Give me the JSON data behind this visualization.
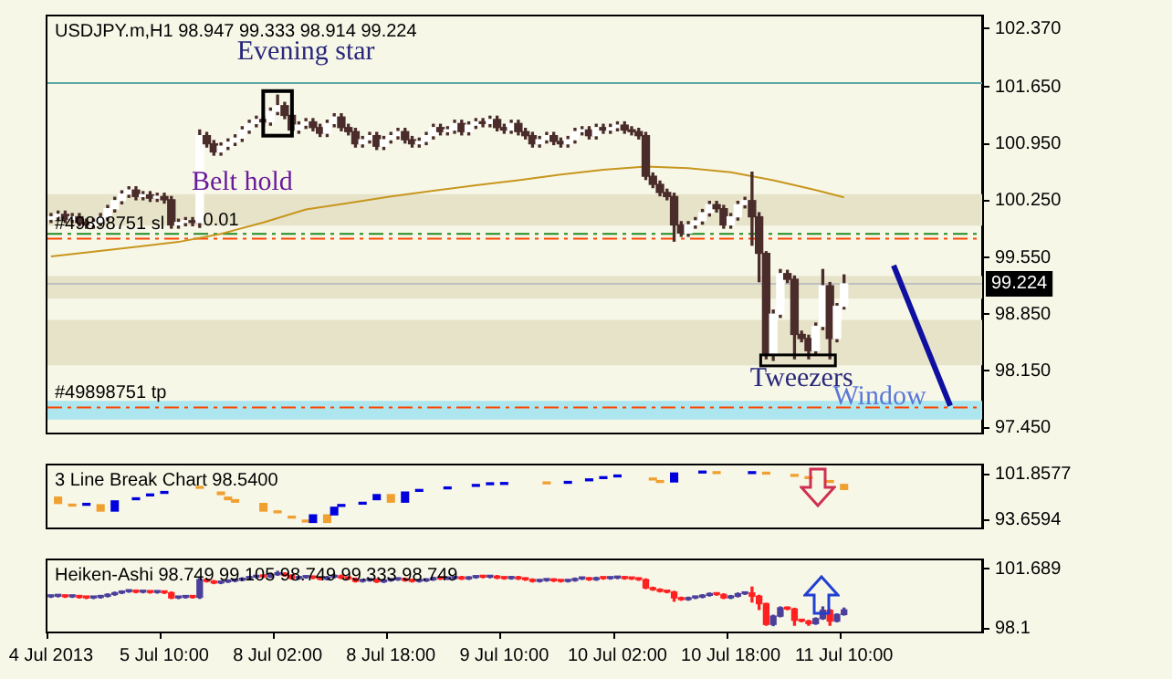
{
  "chart_data": [
    {
      "type": "candlestick",
      "title": "USDJPY.m,H1 98.947 99.333 98.914 99.224",
      "tick_labels": "y",
      "categories": [
        null,
        null,
        null,
        null,
        null,
        null,
        null,
        null,
        null,
        null,
        null,
        null,
        null,
        null,
        null,
        null,
        null,
        null,
        null,
        null,
        null,
        null,
        null,
        null,
        null,
        null,
        null,
        null,
        null,
        null,
        null,
        null,
        null,
        null,
        null,
        null,
        null,
        null,
        null,
        null,
        null,
        null,
        null,
        null,
        null,
        null,
        null,
        null,
        null,
        null,
        null,
        null,
        null,
        null,
        null,
        null,
        null,
        null,
        null,
        null,
        null,
        null,
        null,
        null,
        null,
        null,
        null,
        null,
        null,
        null,
        null,
        null,
        null,
        null,
        null,
        null,
        null,
        null,
        null,
        null,
        null,
        null,
        null,
        null,
        null,
        null,
        null,
        null,
        null,
        null,
        null,
        null,
        null,
        null,
        null,
        null,
        null,
        null,
        null,
        null,
        null,
        null,
        null,
        null,
        null,
        null,
        null,
        null,
        null,
        null,
        null,
        null,
        null,
        null,
        null,
        null,
        null,
        null,
        null,
        null,
        null,
        null,
        null,
        null,
        null,
        null,
        null,
        null,
        null,
        null,
        null,
        null
      ],
      "ohlc": [
        [
          100.02,
          100.09,
          99.98,
          100.05
        ],
        [
          100.05,
          100.12,
          100.01,
          100.08
        ],
        [
          100.08,
          100.12,
          99.98,
          100.02
        ],
        [
          100.02,
          100.09,
          99.98,
          100.05
        ],
        [
          100.05,
          100.09,
          99.94,
          99.98
        ],
        [
          99.98,
          100.02,
          99.91,
          99.95
        ],
        [
          99.95,
          100.02,
          99.91,
          99.98
        ],
        [
          99.98,
          100.09,
          99.94,
          100.05
        ],
        [
          100.05,
          100.19,
          100.01,
          100.15
        ],
        [
          100.15,
          100.29,
          100.11,
          100.25
        ],
        [
          100.25,
          100.37,
          100.21,
          100.33
        ],
        [
          100.33,
          100.42,
          100.29,
          100.38
        ],
        [
          100.38,
          100.42,
          100.26,
          100.3
        ],
        [
          100.3,
          100.36,
          100.26,
          100.32
        ],
        [
          100.32,
          100.36,
          100.24,
          100.28
        ],
        [
          100.28,
          100.34,
          100.24,
          100.3
        ],
        [
          100.3,
          100.34,
          100.22,
          100.26
        ],
        [
          100.26,
          100.3,
          99.91,
          99.95
        ],
        [
          99.95,
          100.02,
          99.91,
          99.98
        ],
        [
          99.98,
          100.04,
          99.94,
          100.0
        ],
        [
          100.0,
          100.04,
          99.94,
          99.98
        ],
        [
          99.98,
          101.12,
          99.92,
          101.05
        ],
        [
          101.05,
          101.09,
          100.91,
          100.95
        ],
        [
          100.95,
          100.99,
          100.81,
          100.85
        ],
        [
          100.85,
          100.96,
          100.81,
          100.92
        ],
        [
          100.92,
          101.01,
          100.88,
          100.97
        ],
        [
          100.97,
          101.06,
          100.93,
          101.02
        ],
        [
          101.02,
          101.16,
          100.98,
          101.12
        ],
        [
          101.12,
          101.24,
          101.08,
          101.2
        ],
        [
          101.2,
          101.29,
          101.16,
          101.25
        ],
        [
          101.25,
          101.29,
          101.18,
          101.22
        ],
        [
          101.22,
          101.39,
          101.18,
          101.35
        ],
        [
          101.35,
          101.55,
          101.31,
          101.42
        ],
        [
          101.42,
          101.46,
          101.26,
          101.3
        ],
        [
          101.3,
          101.34,
          101.08,
          101.12
        ],
        [
          101.12,
          101.22,
          101.08,
          101.18
        ],
        [
          101.18,
          101.26,
          101.14,
          101.22
        ],
        [
          101.22,
          101.26,
          101.11,
          101.15
        ],
        [
          101.15,
          101.19,
          101.04,
          101.08
        ],
        [
          101.08,
          101.24,
          101.04,
          101.2
        ],
        [
          101.2,
          101.32,
          101.16,
          101.28
        ],
        [
          101.28,
          101.32,
          101.11,
          101.15
        ],
        [
          101.15,
          101.19,
          101.06,
          101.1
        ],
        [
          101.1,
          101.14,
          100.91,
          100.95
        ],
        [
          100.95,
          101.04,
          100.91,
          101.0
        ],
        [
          101.0,
          101.09,
          100.96,
          101.05
        ],
        [
          101.05,
          101.09,
          100.88,
          100.92
        ],
        [
          100.92,
          101.04,
          100.88,
          101.0
        ],
        [
          101.0,
          101.09,
          100.96,
          101.05
        ],
        [
          101.05,
          101.14,
          101.01,
          101.1
        ],
        [
          101.1,
          101.14,
          100.96,
          101.0
        ],
        [
          101.0,
          101.04,
          100.91,
          100.95
        ],
        [
          100.95,
          101.02,
          100.91,
          100.98
        ],
        [
          100.98,
          101.09,
          100.94,
          101.05
        ],
        [
          101.05,
          101.19,
          101.01,
          101.15
        ],
        [
          101.15,
          101.19,
          101.06,
          101.1
        ],
        [
          101.1,
          101.16,
          101.06,
          101.12
        ],
        [
          101.12,
          101.24,
          101.08,
          101.2
        ],
        [
          101.2,
          101.24,
          101.06,
          101.1
        ],
        [
          101.1,
          101.22,
          101.06,
          101.18
        ],
        [
          101.18,
          101.26,
          101.14,
          101.22
        ],
        [
          101.22,
          101.26,
          101.16,
          101.2
        ],
        [
          101.2,
          101.29,
          101.16,
          101.25
        ],
        [
          101.25,
          101.29,
          101.11,
          101.15
        ],
        [
          101.15,
          101.19,
          101.08,
          101.12
        ],
        [
          101.12,
          101.24,
          101.08,
          101.2
        ],
        [
          101.2,
          101.24,
          101.06,
          101.1
        ],
        [
          101.1,
          101.14,
          101.01,
          101.05
        ],
        [
          101.05,
          101.09,
          100.91,
          100.95
        ],
        [
          100.95,
          101.04,
          100.91,
          101.0
        ],
        [
          101.0,
          101.09,
          100.96,
          101.05
        ],
        [
          101.05,
          101.09,
          100.94,
          100.98
        ],
        [
          100.98,
          101.02,
          100.91,
          100.95
        ],
        [
          100.95,
          101.04,
          100.91,
          101.0
        ],
        [
          101.0,
          101.14,
          100.96,
          101.1
        ],
        [
          101.1,
          101.16,
          101.06,
          101.12
        ],
        [
          101.12,
          101.16,
          101.01,
          101.05
        ],
        [
          101.05,
          101.19,
          101.01,
          101.15
        ],
        [
          101.15,
          101.19,
          101.08,
          101.12
        ],
        [
          101.12,
          101.19,
          101.08,
          101.15
        ],
        [
          101.15,
          101.22,
          101.11,
          101.18
        ],
        [
          101.18,
          101.22,
          101.08,
          101.12
        ],
        [
          101.12,
          101.16,
          101.06,
          101.1
        ],
        [
          101.1,
          101.14,
          101.01,
          101.05
        ],
        [
          101.05,
          101.09,
          100.51,
          100.55
        ],
        [
          100.55,
          100.59,
          100.41,
          100.45
        ],
        [
          100.45,
          100.49,
          100.31,
          100.35
        ],
        [
          100.35,
          100.39,
          100.26,
          100.3
        ],
        [
          100.3,
          100.34,
          99.75,
          99.95
        ],
        [
          99.95,
          99.99,
          99.81,
          99.85
        ],
        [
          99.85,
          99.99,
          99.81,
          99.95
        ],
        [
          99.95,
          100.04,
          99.91,
          100.0
        ],
        [
          100.0,
          100.14,
          99.96,
          100.1
        ],
        [
          100.1,
          100.24,
          100.06,
          100.2
        ],
        [
          100.2,
          100.24,
          100.11,
          100.15
        ],
        [
          100.15,
          100.19,
          99.91,
          99.95
        ],
        [
          99.95,
          100.09,
          99.91,
          100.05
        ],
        [
          100.05,
          100.24,
          100.01,
          100.2
        ],
        [
          100.2,
          100.29,
          100.16,
          100.25
        ],
        [
          100.25,
          100.6,
          99.7,
          100.05
        ],
        [
          100.05,
          100.1,
          99.25,
          99.6
        ],
        [
          99.6,
          99.62,
          98.3,
          98.35
        ],
        [
          98.35,
          98.9,
          98.28,
          98.85
        ],
        [
          98.85,
          99.4,
          98.81,
          99.35
        ],
        [
          99.35,
          99.39,
          99.24,
          99.28
        ],
        [
          99.28,
          99.32,
          98.3,
          98.6
        ],
        [
          98.6,
          98.64,
          98.51,
          98.55
        ],
        [
          98.55,
          98.59,
          98.3,
          98.4
        ],
        [
          98.4,
          98.74,
          98.36,
          98.7
        ],
        [
          98.7,
          99.4,
          98.66,
          99.2
        ],
        [
          99.2,
          99.24,
          98.3,
          98.55
        ],
        [
          98.55,
          98.98,
          98.51,
          98.947
        ],
        [
          98.947,
          99.333,
          98.914,
          99.224
        ],
        null,
        null,
        null,
        null,
        null,
        null,
        null,
        null,
        null,
        null,
        null,
        null,
        null,
        null,
        null,
        null,
        null,
        null,
        null
      ],
      "series": [
        {
          "type": "line",
          "color": "#c8961e",
          "values": [
            99.56,
            null,
            null,
            null,
            null,
            null,
            99.62,
            null,
            null,
            null,
            null,
            null,
            99.68,
            null,
            null,
            null,
            null,
            null,
            99.74,
            null,
            null,
            null,
            null,
            null,
            99.84,
            null,
            null,
            null,
            null,
            null,
            99.98,
            null,
            null,
            null,
            null,
            null,
            100.14,
            null,
            null,
            null,
            null,
            null,
            100.22,
            null,
            null,
            null,
            null,
            null,
            100.3,
            null,
            null,
            null,
            null,
            null,
            100.37,
            null,
            null,
            null,
            null,
            null,
            100.44,
            null,
            null,
            null,
            null,
            null,
            100.5,
            null,
            null,
            null,
            null,
            null,
            100.57,
            null,
            null,
            null,
            null,
            null,
            100.63,
            null,
            null,
            null,
            null,
            null,
            100.67,
            null,
            null,
            null,
            null,
            null,
            100.65,
            null,
            null,
            null,
            null,
            null,
            100.6,
            null,
            null,
            null,
            null,
            null,
            100.5,
            null,
            null,
            null,
            null,
            null,
            100.38,
            null,
            null,
            null,
            100.29,
            null,
            null,
            null,
            null,
            null,
            null,
            null,
            null,
            null,
            null,
            null,
            null,
            null,
            null,
            null,
            null,
            null,
            null,
            null
          ]
        }
      ],
      "ylim": [
        97.39,
        102.52
      ],
      "yticks": [
        {
          "value": 102.37,
          "label": "102.370"
        },
        {
          "value": 101.65,
          "label": "101.650"
        },
        {
          "value": 100.95,
          "label": "100.950"
        },
        {
          "value": 100.25,
          "label": "100.250"
        },
        {
          "value": 99.55,
          "label": "99.550"
        },
        {
          "value": 98.85,
          "label": "98.850"
        },
        {
          "value": 98.15,
          "label": "98.150"
        },
        {
          "value": 97.45,
          "label": "97.450"
        }
      ],
      "bands": [
        {
          "axis": "y",
          "from": 99.94,
          "to": 100.33,
          "color": "#e6e3c9"
        },
        {
          "axis": "y",
          "from": 99.04,
          "to": 99.32,
          "color": "#e6e3c9"
        },
        {
          "axis": "y",
          "from": 98.22,
          "to": 98.78,
          "color": "#e6e3c9"
        },
        {
          "axis": "y",
          "from": 97.55,
          "to": 97.78,
          "color": "#ade6ee"
        }
      ],
      "ref_lines": [
        {
          "axis": "y",
          "value": 101.7,
          "color": "#5fa8a8"
        },
        {
          "axis": "y",
          "value": 99.84,
          "color": "#228b22",
          "line_style": "dashed"
        },
        {
          "axis": "y",
          "value": 99.78,
          "label": "#49898751 sl",
          "color": "#ff4500",
          "line_style": "dashed"
        },
        {
          "axis": "y",
          "value": 99.224,
          "label": "99.224",
          "color": "#c0c0c0"
        },
        {
          "axis": "y",
          "value": 97.7,
          "label": "#49898751 tp",
          "color": "#ff4500",
          "line_style": "dashed"
        }
      ],
      "annotations": [
        "Evening star",
        "Belt hold",
        "Tweezers",
        "Window",
        "0.01"
      ]
    },
    {
      "type": "bar",
      "title": "3 Line Break Chart 98.5400",
      "tick_labels": "y",
      "categories": [
        null,
        null,
        null,
        null,
        null,
        null,
        null,
        null,
        null,
        null,
        null,
        null,
        null,
        null,
        null,
        null,
        null,
        null,
        null,
        null,
        null,
        null,
        null,
        null,
        null,
        null,
        null,
        null,
        null,
        null,
        null,
        null,
        null,
        null,
        null,
        null,
        null,
        null,
        null,
        null,
        null,
        null,
        null,
        null,
        null,
        null,
        null,
        null,
        null,
        null,
        null,
        null,
        null,
        null,
        null,
        null,
        null,
        null,
        null,
        null,
        null,
        null,
        null,
        null,
        null,
        null,
        null,
        null,
        null,
        null,
        null,
        null,
        null,
        null,
        null,
        null,
        null,
        null,
        null,
        null,
        null,
        null,
        null,
        null,
        null,
        null,
        null,
        null,
        null,
        null,
        null,
        null,
        null,
        null,
        null,
        null,
        null,
        null,
        null,
        null,
        null,
        null,
        null,
        null,
        null,
        null,
        null,
        null,
        null,
        null,
        null,
        null,
        null,
        null,
        null,
        null,
        null,
        null,
        null,
        null,
        null,
        null,
        null,
        null,
        null,
        null,
        null,
        null,
        null,
        null,
        null,
        null
      ],
      "values": [
        null,
        1.14,
        null,
        0.23,
        null,
        0.2,
        null,
        1.14,
        null,
        1.83,
        null,
        null,
        0.23,
        null,
        0.22,
        null,
        0.23,
        null,
        null,
        null,
        null,
        0.23,
        null,
        null,
        0.46,
        0.46,
        0.45,
        null,
        null,
        null,
        1.37,
        null,
        0.23,
        null,
        0.2,
        null,
        0.2,
        1.36,
        null,
        1.36,
        1.37,
        0.2,
        null,
        null,
        0.2,
        null,
        0.91,
        null,
        1.36,
        null,
        1.82,
        null,
        0.2,
        null,
        null,
        null,
        0.2,
        null,
        null,
        null,
        0.2,
        null,
        0.2,
        null,
        0.2,
        null,
        null,
        null,
        null,
        null,
        0.2,
        null,
        null,
        0.2,
        null,
        null,
        0.2,
        null,
        0.2,
        null,
        0.2,
        null,
        null,
        null,
        null,
        0.2,
        0.2,
        null,
        1.6,
        null,
        null,
        null,
        0.2,
        null,
        0.2,
        null,
        null,
        null,
        null,
        0.2,
        null,
        0.2,
        null,
        null,
        null,
        0.2,
        null,
        0.2,
        null,
        null,
        0.2,
        null,
        0.91,
        null,
        null,
        null,
        null,
        null,
        null,
        null,
        null,
        null,
        null,
        null,
        null,
        null,
        null,
        null,
        null,
        null,
        null,
        null
      ],
      "base": [
        null,
        96.62,
        null,
        96.16,
        null,
        96.3,
        null,
        95.25,
        null,
        95.25,
        null,
        null,
        97.3,
        null,
        97.99,
        null,
        98.44,
        null,
        null,
        null,
        null,
        99.35,
        null,
        null,
        98.21,
        97.3,
        96.85,
        null,
        null,
        null,
        95.25,
        null,
        94.95,
        null,
        94.0,
        null,
        93.3,
        93.21,
        null,
        93.21,
        94.57,
        96.1,
        null,
        null,
        96.5,
        null,
        97.3,
        null,
        96.85,
        null,
        96.85,
        null,
        98.8,
        null,
        null,
        null,
        99.25,
        null,
        null,
        null,
        99.7,
        null,
        100.0,
        null,
        100.05,
        null,
        null,
        null,
        null,
        null,
        100.15,
        null,
        null,
        100.25,
        null,
        null,
        100.7,
        null,
        101.1,
        null,
        101.4,
        null,
        null,
        null,
        null,
        100.85,
        100.4,
        null,
        100.49,
        null,
        null,
        null,
        102.1,
        null,
        102.0,
        null,
        null,
        null,
        null,
        102.0,
        null,
        101.9,
        null,
        null,
        null,
        101.5,
        null,
        101.1,
        null,
        null,
        100.4,
        null,
        99.13,
        null,
        null,
        null,
        null,
        null,
        null,
        null,
        null,
        null,
        null,
        null,
        null,
        null,
        null,
        null,
        null,
        null,
        null,
        null
      ],
      "colors": [
        null,
        "#f0a030",
        null,
        "#f0a030",
        null,
        "#0000dd",
        null,
        "#f0a030",
        null,
        "#0000dd",
        null,
        null,
        "#0000dd",
        null,
        "#0000dd",
        null,
        "#0000dd",
        null,
        null,
        null,
        null,
        "#f0a030",
        null,
        null,
        "#f0a030",
        "#f0a030",
        "#f0a030",
        null,
        null,
        null,
        "#f0a030",
        null,
        "#f0a030",
        null,
        "#f0a030",
        null,
        "#f0a030",
        "#0000dd",
        null,
        "#f0a030",
        "#0000dd",
        "#0000dd",
        null,
        null,
        "#0000dd",
        null,
        "#0000dd",
        null,
        "#f0a030",
        null,
        "#0000dd",
        null,
        "#0000dd",
        null,
        null,
        null,
        "#0000dd",
        null,
        null,
        null,
        "#0000dd",
        null,
        "#0000dd",
        null,
        "#0000dd",
        null,
        null,
        null,
        null,
        null,
        "#f0a030",
        null,
        null,
        "#0000dd",
        null,
        null,
        "#0000dd",
        null,
        "#0000dd",
        null,
        "#0000dd",
        null,
        null,
        null,
        null,
        "#f0a030",
        "#f0a030",
        null,
        "#0000dd",
        null,
        null,
        null,
        "#0000dd",
        null,
        "#f0a030",
        null,
        null,
        null,
        null,
        "#0000dd",
        null,
        "#f0a030",
        null,
        null,
        null,
        "#f0a030",
        null,
        "#f0a030",
        null,
        null,
        "#f0a030",
        null,
        "#f0a030",
        null,
        null,
        null,
        null,
        null,
        null,
        null,
        null,
        null,
        null,
        null,
        null,
        null,
        null,
        null,
        null,
        null,
        null,
        null
      ],
      "ylim": [
        92.3,
        103.45
      ],
      "yticks": [
        {
          "value": 101.8577,
          "label": "101.8577"
        },
        {
          "value": 93.6594,
          "label": "93.6594"
        }
      ]
    },
    {
      "type": "candlestick",
      "title": "Heiken-Ashi 98.749 99.105 98.749 99.333 98.749",
      "categories": [
        "4 Jul 2013",
        null,
        null,
        null,
        null,
        null,
        null,
        null,
        null,
        null,
        null,
        null,
        null,
        null,
        null,
        null,
        "5 Jul 10:00",
        null,
        null,
        null,
        null,
        null,
        null,
        null,
        null,
        null,
        null,
        null,
        null,
        null,
        null,
        null,
        "8 Jul 02:00",
        null,
        null,
        null,
        null,
        null,
        null,
        null,
        null,
        null,
        null,
        null,
        null,
        null,
        null,
        null,
        "8 Jul 18:00",
        null,
        null,
        null,
        null,
        null,
        null,
        null,
        null,
        null,
        null,
        null,
        null,
        null,
        null,
        null,
        "9 Jul 10:00",
        null,
        null,
        null,
        null,
        null,
        null,
        null,
        null,
        null,
        null,
        null,
        null,
        null,
        null,
        null,
        "10 Jul 02:00",
        null,
        null,
        null,
        null,
        null,
        null,
        null,
        null,
        null,
        null,
        null,
        null,
        null,
        null,
        null,
        "10 Jul 18:00",
        null,
        null,
        null,
        null,
        null,
        null,
        null,
        null,
        null,
        null,
        null,
        null,
        null,
        null,
        null,
        "11 Jul 10:00",
        null,
        null,
        null,
        null,
        null,
        null,
        null,
        null,
        null,
        null,
        null,
        null,
        null,
        null,
        null,
        null,
        null,
        null,
        null
      ],
      "ohlc": [
        [
          100.02,
          100.09,
          99.98,
          100.05
        ],
        [
          100.05,
          100.12,
          100.01,
          100.08
        ],
        [
          100.08,
          100.12,
          99.98,
          100.02
        ],
        [
          100.02,
          100.09,
          99.98,
          100.05
        ],
        [
          100.05,
          100.09,
          99.94,
          99.98
        ],
        [
          99.98,
          100.02,
          99.91,
          99.95
        ],
        [
          99.95,
          100.02,
          99.91,
          99.98
        ],
        [
          99.98,
          100.09,
          99.94,
          100.05
        ],
        [
          100.05,
          100.19,
          100.01,
          100.15
        ],
        [
          100.15,
          100.29,
          100.11,
          100.25
        ],
        [
          100.25,
          100.37,
          100.21,
          100.33
        ],
        [
          100.33,
          100.42,
          100.29,
          100.38
        ],
        [
          100.38,
          100.42,
          100.26,
          100.3
        ],
        [
          100.3,
          100.36,
          100.26,
          100.32
        ],
        [
          100.32,
          100.36,
          100.24,
          100.28
        ],
        [
          100.28,
          100.34,
          100.24,
          100.3
        ],
        [
          100.3,
          100.34,
          100.22,
          100.26
        ],
        [
          100.26,
          100.3,
          99.91,
          99.95
        ],
        [
          99.95,
          100.02,
          99.91,
          99.98
        ],
        [
          99.98,
          100.04,
          99.94,
          100.0
        ],
        [
          100.0,
          100.04,
          99.94,
          99.98
        ],
        [
          99.98,
          101.12,
          99.92,
          101.05
        ],
        [
          101.05,
          101.09,
          100.91,
          100.95
        ],
        [
          100.95,
          100.99,
          100.81,
          100.85
        ],
        [
          100.85,
          100.96,
          100.81,
          100.92
        ],
        [
          100.92,
          101.01,
          100.88,
          100.97
        ],
        [
          100.97,
          101.06,
          100.93,
          101.02
        ],
        [
          101.02,
          101.16,
          100.98,
          101.12
        ],
        [
          101.12,
          101.24,
          101.08,
          101.2
        ],
        [
          101.2,
          101.29,
          101.16,
          101.25
        ],
        [
          101.25,
          101.29,
          101.18,
          101.22
        ],
        [
          101.22,
          101.39,
          101.18,
          101.35
        ],
        [
          101.35,
          101.55,
          101.31,
          101.42
        ],
        [
          101.42,
          101.46,
          101.26,
          101.3
        ],
        [
          101.3,
          101.34,
          101.08,
          101.12
        ],
        [
          101.12,
          101.22,
          101.08,
          101.18
        ],
        [
          101.18,
          101.26,
          101.14,
          101.22
        ],
        [
          101.22,
          101.26,
          101.11,
          101.15
        ],
        [
          101.15,
          101.19,
          101.04,
          101.08
        ],
        [
          101.08,
          101.24,
          101.04,
          101.2
        ],
        [
          101.2,
          101.32,
          101.16,
          101.28
        ],
        [
          101.28,
          101.32,
          101.11,
          101.15
        ],
        [
          101.15,
          101.19,
          101.06,
          101.1
        ],
        [
          101.1,
          101.14,
          100.91,
          100.95
        ],
        [
          100.95,
          101.04,
          100.91,
          101.0
        ],
        [
          101.0,
          101.09,
          100.96,
          101.05
        ],
        [
          101.05,
          101.09,
          100.88,
          100.92
        ],
        [
          100.92,
          101.04,
          100.88,
          101.0
        ],
        [
          101.0,
          101.09,
          100.96,
          101.05
        ],
        [
          101.05,
          101.14,
          101.01,
          101.1
        ],
        [
          101.1,
          101.14,
          100.96,
          101.0
        ],
        [
          101.0,
          101.04,
          100.91,
          100.95
        ],
        [
          100.95,
          101.02,
          100.91,
          100.98
        ],
        [
          100.98,
          101.09,
          100.94,
          101.05
        ],
        [
          101.05,
          101.19,
          101.01,
          101.15
        ],
        [
          101.15,
          101.19,
          101.06,
          101.1
        ],
        [
          101.1,
          101.16,
          101.06,
          101.12
        ],
        [
          101.12,
          101.24,
          101.08,
          101.2
        ],
        [
          101.2,
          101.24,
          101.06,
          101.1
        ],
        [
          101.1,
          101.22,
          101.06,
          101.18
        ],
        [
          101.18,
          101.26,
          101.14,
          101.22
        ],
        [
          101.22,
          101.26,
          101.16,
          101.2
        ],
        [
          101.2,
          101.29,
          101.16,
          101.25
        ],
        [
          101.25,
          101.29,
          101.11,
          101.15
        ],
        [
          101.15,
          101.19,
          101.08,
          101.12
        ],
        [
          101.12,
          101.24,
          101.08,
          101.2
        ],
        [
          101.2,
          101.24,
          101.06,
          101.1
        ],
        [
          101.1,
          101.14,
          101.01,
          101.05
        ],
        [
          101.05,
          101.09,
          100.91,
          100.95
        ],
        [
          100.95,
          101.04,
          100.91,
          101.0
        ],
        [
          101.0,
          101.09,
          100.96,
          101.05
        ],
        [
          101.05,
          101.09,
          100.94,
          100.98
        ],
        [
          100.98,
          101.02,
          100.91,
          100.95
        ],
        [
          100.95,
          101.04,
          100.91,
          101.0
        ],
        [
          101.0,
          101.14,
          100.96,
          101.1
        ],
        [
          101.1,
          101.16,
          101.06,
          101.12
        ],
        [
          101.12,
          101.16,
          101.01,
          101.05
        ],
        [
          101.05,
          101.19,
          101.01,
          101.15
        ],
        [
          101.15,
          101.19,
          101.08,
          101.12
        ],
        [
          101.12,
          101.19,
          101.08,
          101.15
        ],
        [
          101.15,
          101.22,
          101.11,
          101.18
        ],
        [
          101.18,
          101.22,
          101.08,
          101.12
        ],
        [
          101.12,
          101.16,
          101.06,
          101.1
        ],
        [
          101.1,
          101.14,
          101.01,
          101.05
        ],
        [
          101.05,
          101.09,
          100.51,
          100.55
        ],
        [
          100.55,
          100.59,
          100.41,
          100.45
        ],
        [
          100.45,
          100.49,
          100.31,
          100.35
        ],
        [
          100.35,
          100.39,
          100.26,
          100.3
        ],
        [
          100.3,
          100.34,
          99.75,
          99.95
        ],
        [
          99.95,
          99.99,
          99.81,
          99.85
        ],
        [
          99.85,
          99.99,
          99.81,
          99.95
        ],
        [
          99.95,
          100.04,
          99.91,
          100.0
        ],
        [
          100.0,
          100.14,
          99.96,
          100.1
        ],
        [
          100.1,
          100.24,
          100.06,
          100.2
        ],
        [
          100.2,
          100.24,
          100.11,
          100.15
        ],
        [
          100.15,
          100.19,
          99.91,
          99.95
        ],
        [
          99.95,
          100.09,
          99.91,
          100.05
        ],
        [
          100.05,
          100.24,
          100.01,
          100.2
        ],
        [
          100.2,
          100.29,
          100.16,
          100.25
        ],
        [
          100.25,
          100.6,
          99.7,
          100.05
        ],
        [
          100.05,
          100.1,
          99.25,
          99.6
        ],
        [
          99.6,
          99.62,
          98.3,
          98.35
        ],
        [
          98.35,
          98.9,
          98.28,
          98.85
        ],
        [
          98.85,
          99.4,
          98.81,
          99.35
        ],
        [
          99.35,
          99.39,
          99.24,
          99.28
        ],
        [
          99.28,
          99.32,
          98.3,
          98.6
        ],
        [
          98.6,
          98.64,
          98.51,
          98.55
        ],
        [
          98.55,
          98.59,
          98.3,
          98.4
        ],
        [
          98.4,
          98.74,
          98.36,
          98.7
        ],
        [
          98.7,
          99.4,
          98.66,
          99.2
        ],
        [
          99.2,
          99.24,
          98.3,
          98.55
        ],
        [
          98.55,
          98.98,
          98.51,
          98.947
        ],
        [
          98.947,
          99.333,
          98.914,
          99.224
        ],
        null,
        null,
        null,
        null,
        null,
        null,
        null,
        null,
        null,
        null,
        null,
        null,
        null,
        null,
        null,
        null,
        null,
        null,
        null
      ],
      "ylim": [
        97.92,
        102.21
      ],
      "yticks": [
        {
          "value": 101.689,
          "label": "101.689"
        },
        98.1
      ]
    }
  ]
}
